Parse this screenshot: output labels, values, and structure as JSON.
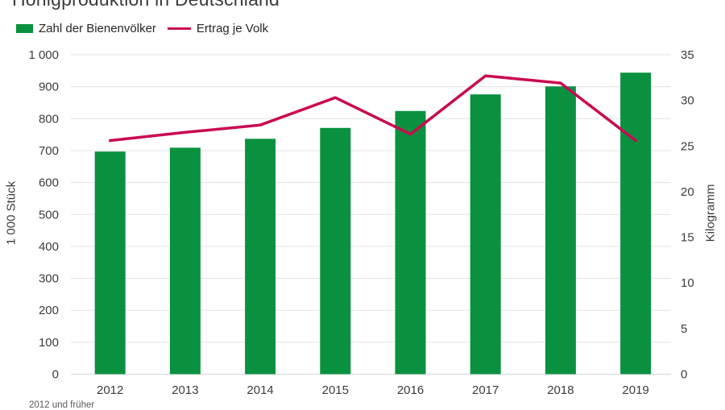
{
  "chart_title": "Honigproduktion in Deutschland",
  "footnote_partial": "2012 und früher",
  "legend": {
    "bar_label": "Zahl der Bienenvölker",
    "line_label": "Ertrag je Volk"
  },
  "chart_data": {
    "type": "bar",
    "subtype": "bar + line combo, dual axis",
    "title": "Honigproduktion in Deutschland",
    "categories": [
      "2012",
      "2013",
      "2014",
      "2015",
      "2016",
      "2017",
      "2018",
      "2019"
    ],
    "series": [
      {
        "name": "Zahl der Bienenvölker",
        "type": "bar",
        "axis": "left",
        "color": "#0a9140",
        "values": [
          697,
          709,
          737,
          771,
          824,
          876,
          901,
          944
        ]
      },
      {
        "name": "Ertrag je Volk",
        "type": "line",
        "axis": "right",
        "color": "#c90a51",
        "values": [
          25.6,
          26.5,
          27.3,
          30.3,
          26.3,
          32.7,
          31.9,
          25.6
        ]
      }
    ],
    "left_axis": {
      "label": "1 000 Stück",
      "min": 0,
      "max": 1000,
      "step": 100,
      "tick_labels": [
        "0",
        "100",
        "200",
        "300",
        "400",
        "500",
        "600",
        "700",
        "800",
        "900",
        "1 000"
      ]
    },
    "right_axis": {
      "label": "Kilogramm",
      "min": 0,
      "max": 35,
      "step": 5,
      "tick_labels": [
        "0",
        "5",
        "10",
        "15",
        "20",
        "25",
        "30",
        "35"
      ]
    },
    "grid": "horizontal only",
    "legend_position": "top-left",
    "colors": {
      "grid": "#e3e3e3",
      "baseline": "#d7d7d7",
      "tick_text": "#3c3c3b"
    }
  }
}
